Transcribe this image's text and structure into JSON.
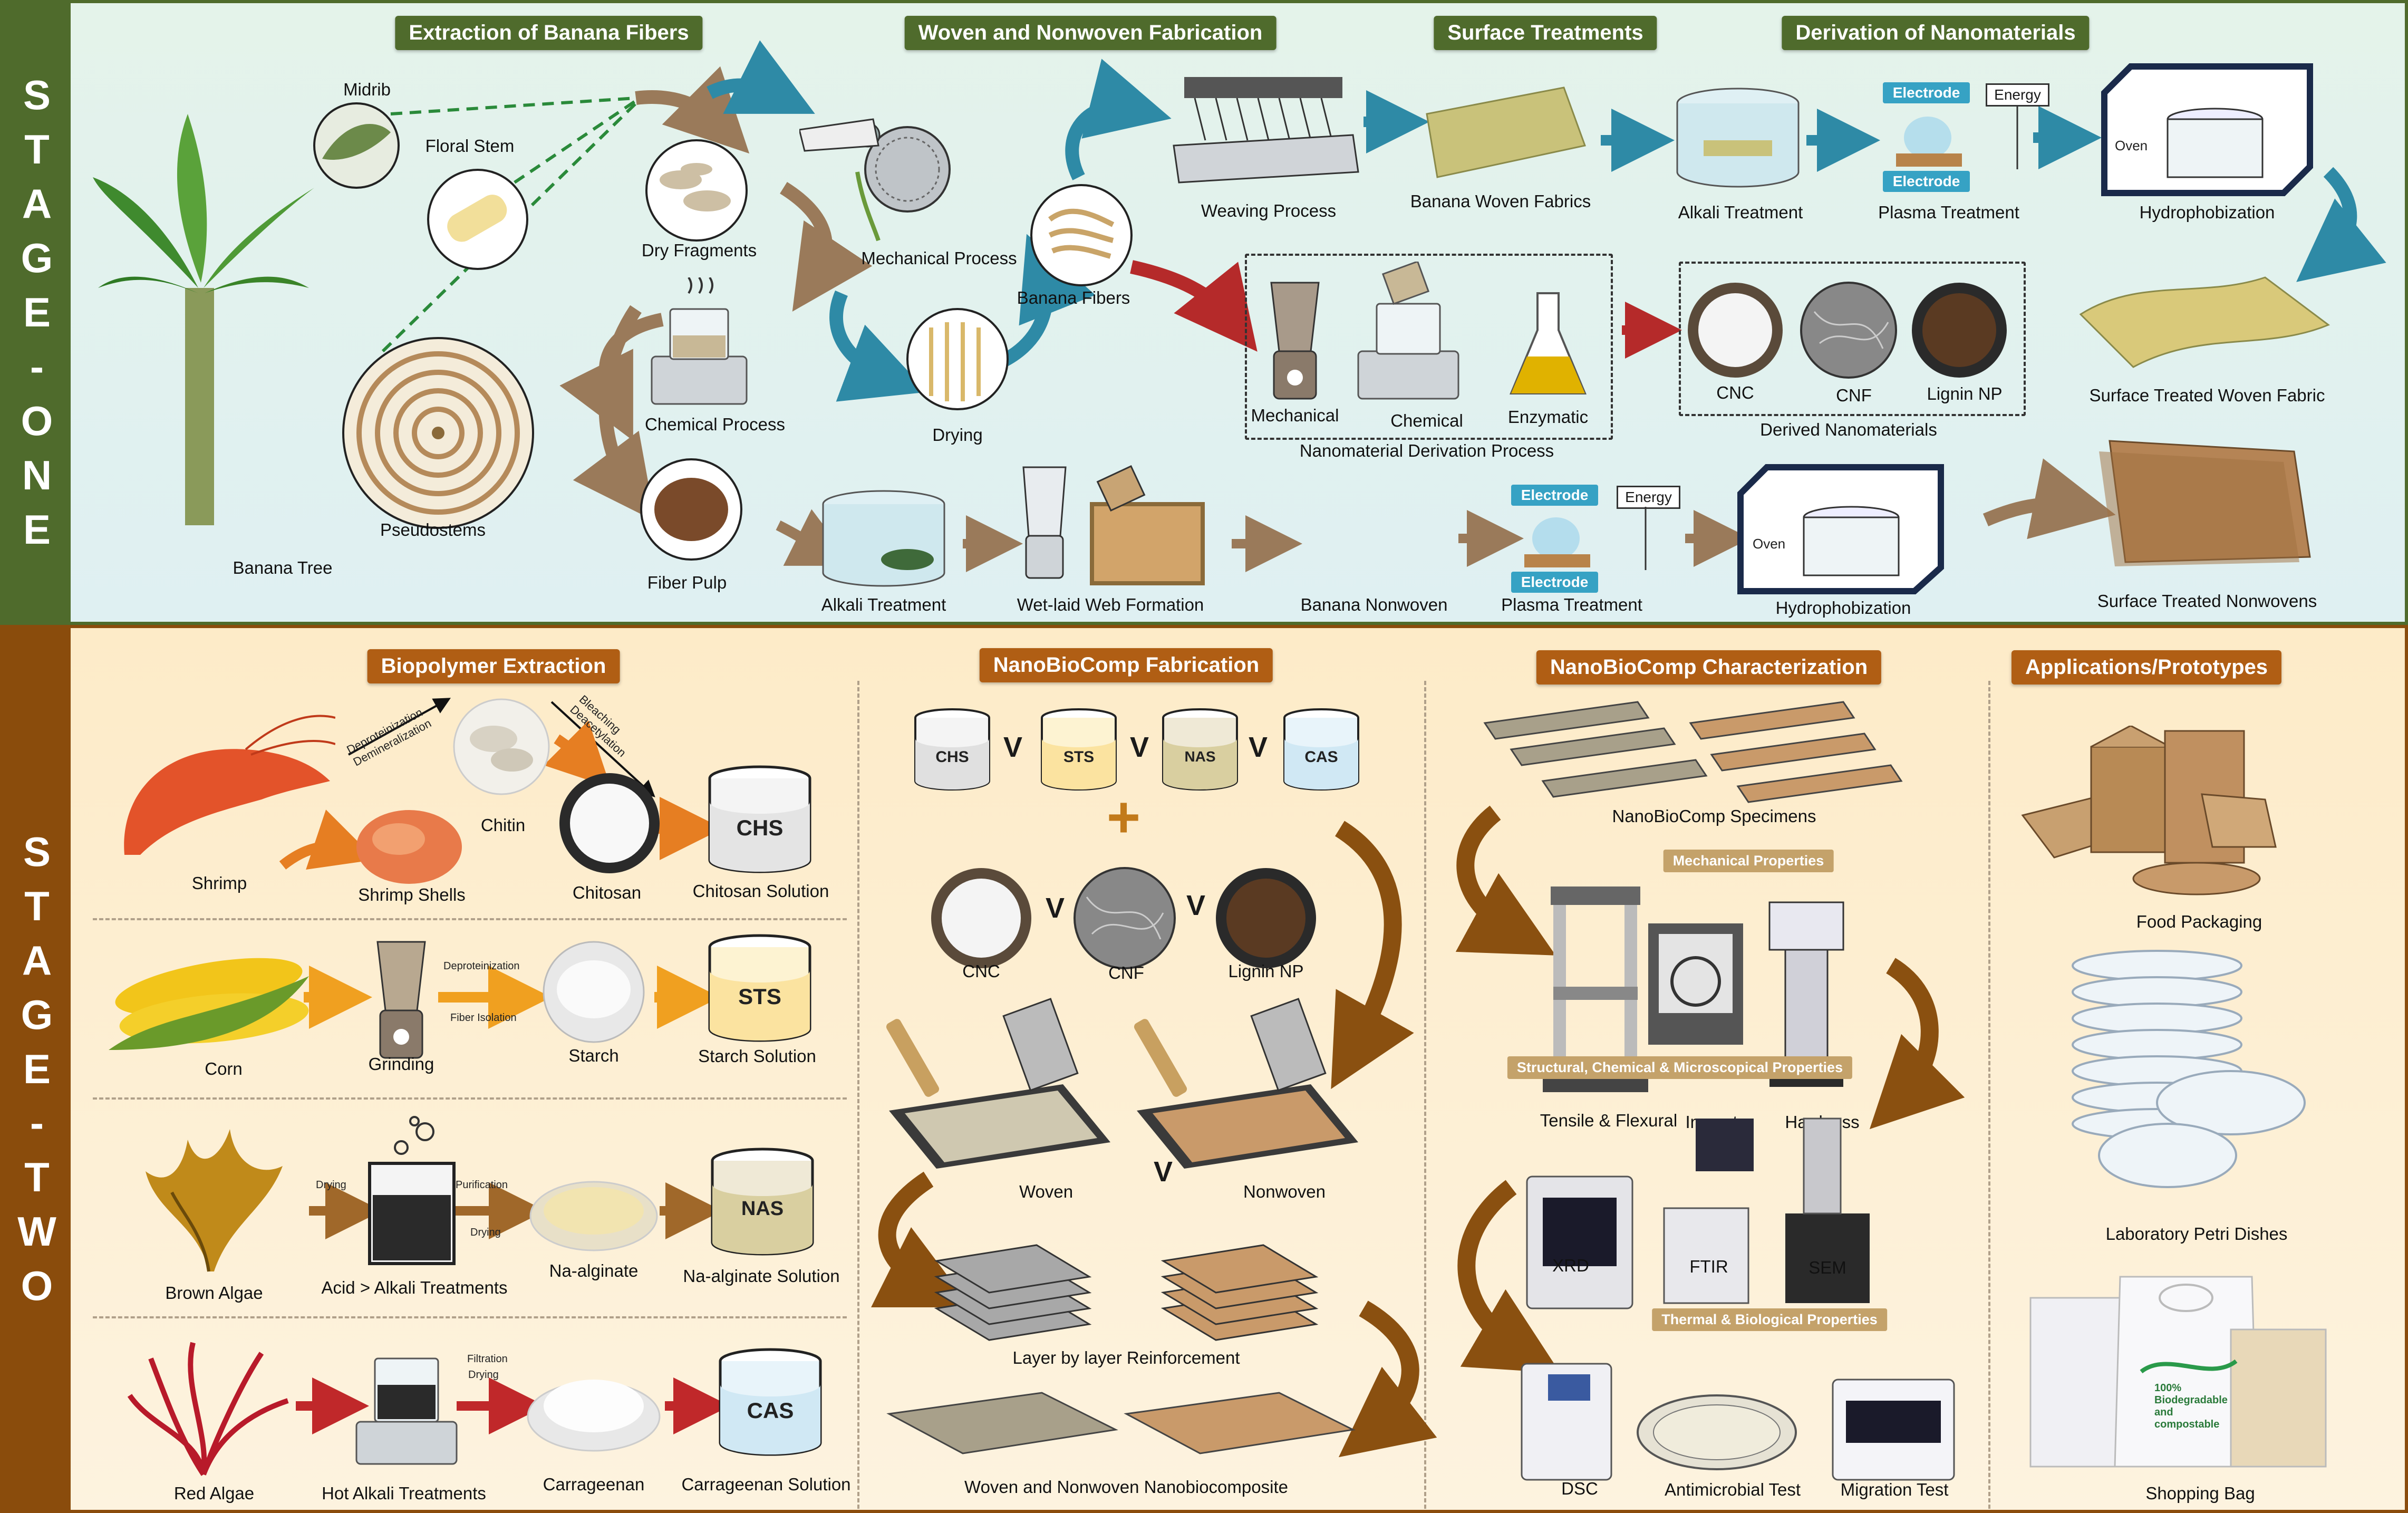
{
  "stage_one": {
    "side_label": [
      "S",
      "T",
      "A",
      "G",
      "E",
      "-",
      "O",
      "N",
      "E"
    ],
    "headers": {
      "extraction": "Extraction of Banana Fibers",
      "fabrication": "Woven and Nonwoven Fabrication",
      "surface": "Surface Treatments",
      "nano": "Derivation of Nanomaterials"
    },
    "labels": {
      "midrib": "Midrib",
      "floral_stem": "Floral Stem",
      "pseudostems": "Pseudostems",
      "banana_tree": "Banana Tree",
      "dry_fragments": "Dry Fragments",
      "chemical_process": "Chemical Process",
      "fiber_pulp": "Fiber Pulp",
      "mechanical_process": "Mechanical Process",
      "drying": "Drying",
      "banana_fibers": "Banana Fibers",
      "weaving_process": "Weaving Process",
      "banana_woven_fabrics": "Banana Woven Fabrics",
      "alkali_treatment_top": "Alkali Treatment",
      "plasma_treatment_top": "Plasma Treatment",
      "hydrophobization_top": "Hydrophobization",
      "surface_treated_woven": "Surface Treated Woven Fabric",
      "mechanical": "Mechanical",
      "chemical": "Chemical",
      "enzymatic": "Enzymatic",
      "nano_process": "Nanomaterial Derivation Process",
      "cnc": "CNC",
      "cnf": "CNF",
      "lignin": "Lignin NP",
      "derived_nano": "Derived Nanomaterials",
      "alkali_treatment_bottom": "Alkali Treatment",
      "wet_laid": "Wet-laid Web Formation",
      "banana_nonwoven": "Banana Nonwoven",
      "plasma_treatment_bottom": "Plasma Treatment",
      "hydrophobization_bottom": "Hydrophobization",
      "surface_treated_nonwovens": "Surface Treated Nonwovens",
      "electrode": "Electrode",
      "energy": "Energy",
      "oven": "Oven"
    }
  },
  "stage_two": {
    "side_label": [
      "S",
      "T",
      "A",
      "G",
      "E",
      "-",
      "T",
      "W",
      "O"
    ],
    "headers": {
      "biopolymer": "Biopolymer Extraction",
      "fabrication": "NanoBioComp Fabrication",
      "characterization": "NanoBioComp Characterization",
      "applications": "Applications/Prototypes"
    },
    "biopolymer": {
      "shrimp": "Shrimp",
      "shrimp_shells": "Shrimp Shells",
      "chitin": "Chitin",
      "chitosan": "Chitosan",
      "chitosan_solution": "Chitosan Solution",
      "deprot_demin": "Deproteinization\nDemineralization",
      "bleach_deacetyl": "Bleaching\nDeacetylation",
      "corn": "Corn",
      "grinding": "Grinding",
      "deprot": "Deproteinization",
      "fiber_isolation": "Fiber Isolation",
      "starch": "Starch",
      "starch_solution": "Starch Solution",
      "brown_algae": "Brown Algae",
      "drying_a": "Drying",
      "purification": "Purification",
      "drying_b": "Drying",
      "acid_alkali": "Acid > Alkali Treatments",
      "na_alginate": "Na-alginate",
      "na_alginate_solution": "Na-alginate Solution",
      "red_algae": "Red Algae",
      "hot_alkali": "Hot Alkali Treatments",
      "filtration": "Filtration",
      "drying_c": "Drying",
      "carrageenan": "Carrageenan",
      "carrageenan_solution": "Carrageenan Solution"
    },
    "beaker_labels": {
      "chs": "CHS",
      "sts": "STS",
      "nas": "NAS",
      "cas": "CAS"
    },
    "fabrication": {
      "cnc": "CNC",
      "cnf": "CNF",
      "lignin": "Lignin NP",
      "woven": "Woven",
      "nonwoven": "Nonwoven",
      "or_symbol": "V",
      "layer": "Layer by layer Reinforcement",
      "composite": "Woven and Nonwoven Nanobiocomposite"
    },
    "characterization": {
      "specimens": "NanoBioComp Specimens",
      "mechanical_props": "Mechanical Properties",
      "tensile": "Tensile & Flexural",
      "impact": "Impact",
      "hardness": "Hardness",
      "structural_props": "Structural, Chemical & Microscopical Properties",
      "xrd": "XRD",
      "ftir": "FTIR",
      "sem": "SEM",
      "thermal_props": "Thermal & Biological Properties",
      "dsc": "DSC",
      "antimicrobial": "Antimicrobial Test",
      "migration": "Migration Test"
    },
    "applications": {
      "food": "Food Packaging",
      "petri": "Laboratory Petri Dishes",
      "bag": "Shopping Bag",
      "bag_print": "100% Biodegradable and compostable"
    }
  },
  "colors": {
    "stage_one": "#4f6b2c",
    "stage_two": "#8a4c0c",
    "header_two": "#b05e14",
    "arrow_teal": "#2e8aa6",
    "arrow_brown": "#9a7a5a",
    "arrow_red": "#b52a2a",
    "arrow_orange": "#e67e22"
  }
}
